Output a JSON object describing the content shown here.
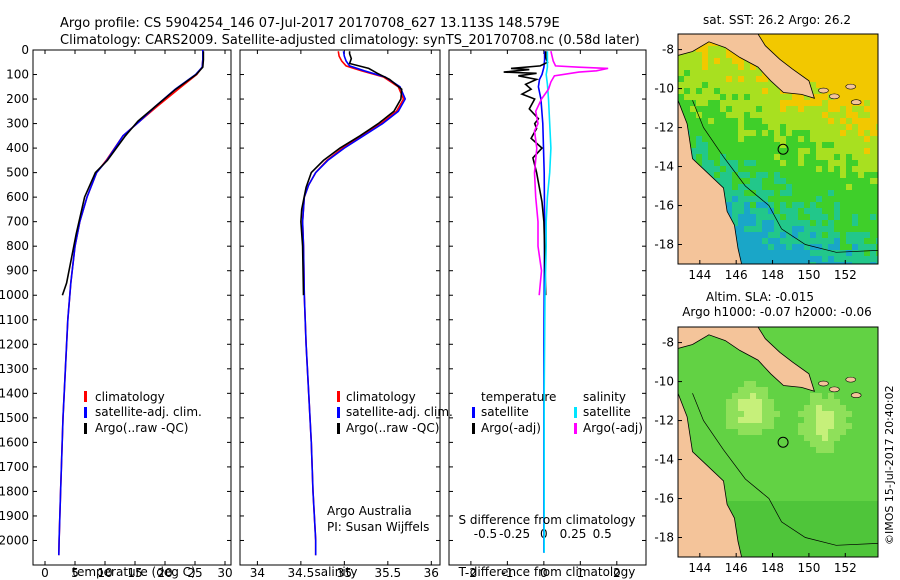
{
  "header": {
    "title_line1": "Argo profile: CS 5904254_146 07-Jul-2017 20170708_627 13.113S 148.579E",
    "title_line2": "Climatology: CARS2009. Satellite-adjusted climatology: synTS_20170708.nc (0.58d later)"
  },
  "footer": {
    "watermark": "©IMOS 15-Jul-2017 20:40:02",
    "credit_line1": "Argo Australia",
    "credit_line2": "PI: Susan Wijffels"
  },
  "colors": {
    "climatology": "#ff0000",
    "satellite": "#0000ff",
    "argo": "#000000",
    "salinity_satellite": "#00e5ff",
    "salinity_argo": "#ff00ff"
  },
  "chart_data": [
    {
      "type": "line",
      "id": "temperature",
      "xlabel": "temperature (deg C)",
      "ylabel": "",
      "xlim": [
        -2,
        31
      ],
      "ylim": [
        2100,
        0
      ],
      "xticks": [
        0,
        5,
        10,
        15,
        20,
        25,
        30
      ],
      "yticks": [
        0,
        100,
        200,
        300,
        400,
        500,
        600,
        700,
        800,
        900,
        1000,
        1100,
        1200,
        1300,
        1400,
        1500,
        1600,
        1700,
        1800,
        1900,
        2000
      ],
      "legend": [
        "climatology",
        "satellite-adj. clim.",
        "Argo(..raw -QC)"
      ],
      "series": [
        {
          "name": "climatology",
          "points": [
            [
              2.3,
              2060
            ],
            [
              2.35,
              2000
            ],
            [
              2.6,
              1800
            ],
            [
              3.0,
              1500
            ],
            [
              3.4,
              1300
            ],
            [
              3.8,
              1100
            ],
            [
              4.3,
              950
            ],
            [
              5.0,
              800
            ],
            [
              5.8,
              700
            ],
            [
              7.0,
              600
            ],
            [
              8.6,
              500
            ],
            [
              10.2,
              450
            ],
            [
              13.0,
              350
            ],
            [
              15.8,
              290
            ],
            [
              18.7,
              230
            ],
            [
              22.2,
              160
            ],
            [
              25.3,
              100
            ],
            [
              26.2,
              70
            ],
            [
              26.3,
              40
            ],
            [
              26.3,
              0
            ]
          ]
        },
        {
          "name": "satellite-adj. clim.",
          "points": [
            [
              2.3,
              2060
            ],
            [
              2.35,
              2000
            ],
            [
              2.6,
              1800
            ],
            [
              3.0,
              1500
            ],
            [
              3.4,
              1300
            ],
            [
              3.8,
              1100
            ],
            [
              4.3,
              950
            ],
            [
              5.0,
              800
            ],
            [
              5.8,
              700
            ],
            [
              7.0,
              600
            ],
            [
              8.6,
              500
            ],
            [
              10.3,
              450
            ],
            [
              13.0,
              350
            ],
            [
              15.8,
              290
            ],
            [
              18.4,
              230
            ],
            [
              21.7,
              160
            ],
            [
              25.1,
              100
            ],
            [
              26.2,
              70
            ],
            [
              26.3,
              40
            ],
            [
              26.3,
              0
            ]
          ]
        },
        {
          "name": "Argo(..raw -QC)",
          "points": [
            [
              2.9,
              1000
            ],
            [
              3.6,
              950
            ],
            [
              4.4,
              850
            ],
            [
              5.2,
              750
            ],
            [
              6.6,
              600
            ],
            [
              8.4,
              500
            ],
            [
              10.4,
              450
            ],
            [
              13.4,
              350
            ],
            [
              15.5,
              290
            ],
            [
              18.4,
              230
            ],
            [
              21.8,
              160
            ],
            [
              25.2,
              100
            ],
            [
              26.3,
              70
            ],
            [
              26.4,
              40
            ],
            [
              26.4,
              5
            ]
          ]
        }
      ]
    },
    {
      "type": "line",
      "id": "salinity",
      "xlabel": "salinity",
      "ylabel": "",
      "xlim": [
        33.8,
        36.1
      ],
      "ylim": [
        2100,
        0
      ],
      "xticks": [
        34,
        34.5,
        35,
        35.5,
        36
      ],
      "xticklabels": [
        "34",
        "34.5",
        "35",
        "35.5",
        "36"
      ],
      "legend": [
        "climatology",
        "satellite-adj. clim.",
        "Argo(..raw -QC)"
      ],
      "series": [
        {
          "name": "climatology",
          "points": [
            [
              34.67,
              2060
            ],
            [
              34.67,
              2000
            ],
            [
              34.64,
              1800
            ],
            [
              34.62,
              1600
            ],
            [
              34.59,
              1400
            ],
            [
              34.56,
              1200
            ],
            [
              34.54,
              1000
            ],
            [
              34.53,
              800
            ],
            [
              34.52,
              700
            ],
            [
              34.54,
              600
            ],
            [
              34.59,
              550
            ],
            [
              34.67,
              500
            ],
            [
              34.8,
              450
            ],
            [
              34.98,
              400
            ],
            [
              35.2,
              350
            ],
            [
              35.42,
              300
            ],
            [
              35.6,
              250
            ],
            [
              35.68,
              200
            ],
            [
              35.62,
              150
            ],
            [
              35.45,
              110
            ],
            [
              35.2,
              85
            ],
            [
              35.02,
              65
            ],
            [
              34.97,
              45
            ],
            [
              34.94,
              25
            ],
            [
              34.93,
              5
            ]
          ]
        },
        {
          "name": "satellite-adj. clim.",
          "points": [
            [
              34.67,
              2060
            ],
            [
              34.67,
              2000
            ],
            [
              34.64,
              1800
            ],
            [
              34.62,
              1600
            ],
            [
              34.59,
              1400
            ],
            [
              34.56,
              1200
            ],
            [
              34.54,
              1000
            ],
            [
              34.53,
              800
            ],
            [
              34.52,
              700
            ],
            [
              34.54,
              600
            ],
            [
              34.59,
              550
            ],
            [
              34.67,
              500
            ],
            [
              34.81,
              450
            ],
            [
              35.0,
              400
            ],
            [
              35.22,
              350
            ],
            [
              35.44,
              300
            ],
            [
              35.62,
              250
            ],
            [
              35.7,
              200
            ],
            [
              35.64,
              150
            ],
            [
              35.47,
              110
            ],
            [
              35.23,
              85
            ],
            [
              35.06,
              65
            ],
            [
              35.02,
              45
            ],
            [
              35.0,
              25
            ],
            [
              34.99,
              5
            ]
          ]
        },
        {
          "name": "Argo(..raw -QC)",
          "points": [
            [
              34.53,
              1000
            ],
            [
              34.52,
              800
            ],
            [
              34.5,
              700
            ],
            [
              34.51,
              650
            ],
            [
              34.56,
              560
            ],
            [
              34.62,
              500
            ],
            [
              34.76,
              450
            ],
            [
              34.95,
              400
            ],
            [
              35.18,
              350
            ],
            [
              35.39,
              300
            ],
            [
              35.57,
              250
            ],
            [
              35.65,
              200
            ],
            [
              35.66,
              160
            ],
            [
              35.52,
              120
            ],
            [
              35.38,
              95
            ],
            [
              35.28,
              75
            ],
            [
              35.06,
              55
            ],
            [
              35.08,
              35
            ],
            [
              35.06,
              15
            ],
            [
              35.06,
              5
            ]
          ]
        }
      ]
    },
    {
      "type": "line",
      "id": "difference",
      "xlabel": "T difference from climatology",
      "xlabel_top": "S difference from climatology",
      "xlim": [
        -2.6,
        2.8
      ],
      "ylim": [
        2100,
        0
      ],
      "xticks": [
        -2,
        -1,
        0,
        1,
        2
      ],
      "s_xticks": [
        -0.5,
        -0.25,
        0,
        0.25,
        0.5
      ],
      "s_xticklabels": [
        "-0.5",
        "-0.25",
        "0",
        "0.25",
        "0.5"
      ],
      "legend_titles": [
        "temperature",
        "salinity"
      ],
      "legend": [
        "satellite",
        "Argo(-adj)",
        "satellite",
        "Argo(-adj)"
      ],
      "series": [
        {
          "name": "temperature satellite",
          "points": [
            [
              0,
              2050
            ],
            [
              0,
              1200
            ],
            [
              0.02,
              700
            ],
            [
              0.01,
              500
            ],
            [
              -0.03,
              300
            ],
            [
              -0.08,
              200
            ],
            [
              -0.15,
              150
            ],
            [
              -0.12,
              120
            ],
            [
              -0.05,
              100
            ],
            [
              0,
              70
            ],
            [
              0.02,
              40
            ],
            [
              0.02,
              5
            ]
          ]
        },
        {
          "name": "temperature Argo(-adj)",
          "points": [
            [
              0.05,
              1000
            ],
            [
              0.02,
              800
            ],
            [
              0.0,
              700
            ],
            [
              -0.05,
              620
            ],
            [
              -0.2,
              500
            ],
            [
              -0.3,
              440
            ],
            [
              -0.05,
              400
            ],
            [
              -0.35,
              360
            ],
            [
              -0.2,
              320
            ],
            [
              -0.25,
              300
            ],
            [
              -0.15,
              280
            ],
            [
              -0.4,
              240
            ],
            [
              -0.25,
              200
            ],
            [
              -0.6,
              180
            ],
            [
              -0.35,
              160
            ],
            [
              -0.5,
              140
            ],
            [
              -0.2,
              120
            ],
            [
              -0.7,
              105
            ],
            [
              -0.2,
              95
            ],
            [
              -1.1,
              90
            ],
            [
              -0.4,
              80
            ],
            [
              -0.9,
              75
            ],
            [
              -0.1,
              65
            ],
            [
              0.1,
              50
            ],
            [
              0.05,
              30
            ],
            [
              0.05,
              5
            ]
          ]
        },
        {
          "name": "salinity satellite",
          "points": [
            [
              0.003,
              2050
            ],
            [
              0.003,
              1400
            ],
            [
              0.01,
              1000
            ],
            [
              0.02,
              800
            ],
            [
              0.02,
              700
            ],
            [
              0.03,
              600
            ],
            [
              0.05,
              500
            ],
            [
              0.06,
              400
            ],
            [
              0.05,
              300
            ],
            [
              0.04,
              200
            ],
            [
              0.03,
              140
            ],
            [
              0.02,
              100
            ],
            [
              0.03,
              70
            ],
            [
              0.03,
              40
            ],
            [
              0.03,
              5
            ]
          ]
        },
        {
          "name": "salinity Argo(-adj)",
          "points": [
            [
              -0.04,
              1000
            ],
            [
              -0.02,
              900
            ],
            [
              -0.05,
              800
            ],
            [
              -0.05,
              700
            ],
            [
              -0.07,
              600
            ],
            [
              -0.08,
              500
            ],
            [
              -0.06,
              400
            ],
            [
              -0.08,
              330
            ],
            [
              -0.05,
              300
            ],
            [
              -0.07,
              250
            ],
            [
              -0.02,
              200
            ],
            [
              0.04,
              160
            ],
            [
              0.06,
              130
            ],
            [
              0.09,
              105
            ],
            [
              0.3,
              90
            ],
            [
              0.45,
              85
            ],
            [
              0.55,
              75
            ],
            [
              0.3,
              70
            ],
            [
              0.1,
              65
            ],
            [
              0.08,
              45
            ],
            [
              0.06,
              5
            ]
          ]
        }
      ]
    },
    {
      "type": "heatmap",
      "id": "sst_map",
      "title": "sat. SST: 26.2 Argo: 26.2",
      "xticks": [
        144,
        146,
        148,
        150,
        152
      ],
      "yticks": [
        -8,
        -10,
        -12,
        -14,
        -16,
        -18
      ],
      "marker": [
        148.579,
        -13.113
      ]
    },
    {
      "type": "heatmap",
      "id": "sla_map",
      "title_line1": "Altim. SLA: -0.015",
      "title_line2": "Argo h1000: -0.07 h2000: -0.06",
      "xticks": [
        144,
        146,
        148,
        150,
        152
      ],
      "yticks": [
        -8,
        -10,
        -12,
        -14,
        -16,
        -18
      ],
      "marker": [
        148.579,
        -13.113
      ]
    }
  ]
}
